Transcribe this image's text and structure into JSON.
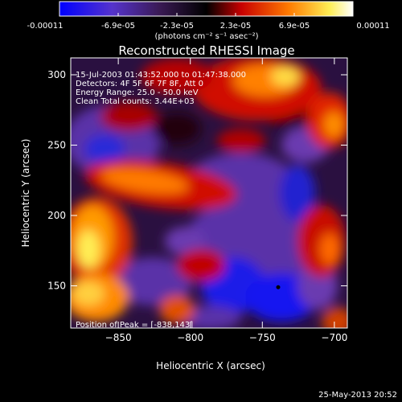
{
  "colorbar": {
    "tick_labels": [
      "-0.00011",
      "-6.9e-05",
      "-2.3e-05",
      "2.3e-05",
      "6.9e-05",
      "0.00011"
    ],
    "tick_values": [
      -0.00011,
      -6.9e-05,
      -2.3e-05,
      2.3e-05,
      6.9e-05,
      0.00011
    ],
    "range": [
      -0.00011,
      0.00011
    ],
    "unit_label": "(photons cm⁻² s⁻¹ asec⁻²)",
    "colors": [
      "#0000ff",
      "#7f3fbf",
      "#000000",
      "#d40000",
      "#ff8000",
      "#ffff66",
      "#ffffff"
    ]
  },
  "annotations": {
    "time_range": "15-Jul-2003 01:43:52.000 to 01:47:38.000",
    "detectors": "Detectors: 4F 5F 6F 7F 8F, Att 0",
    "energy": "Energy Range: 25.0 - 50.0 keV",
    "clean": "Clean     Total counts: 3.44E+03",
    "peak": "Position of Peak = [-838,143]",
    "footer_date": "25-May-2013 20:52"
  },
  "chart_data": {
    "type": "heatmap",
    "title": "Reconstructed RHESSI Image",
    "xlabel": "Heliocentric X (arcsec)",
    "ylabel": "Heliocentric Y (arcsec)",
    "xlim": [
      -883,
      -691
    ],
    "ylim": [
      120,
      312
    ],
    "x_ticks": [
      -850,
      -800,
      -750,
      -700
    ],
    "x_tick_labels": [
      "−850",
      "−800",
      "−750",
      "−700"
    ],
    "y_ticks": [
      150,
      200,
      250,
      300
    ],
    "y_tick_labels": [
      "150",
      "200",
      "250",
      "300"
    ],
    "marker": {
      "x": -739,
      "y": 149
    },
    "peak_position": {
      "x": -838,
      "y": 143
    }
  }
}
